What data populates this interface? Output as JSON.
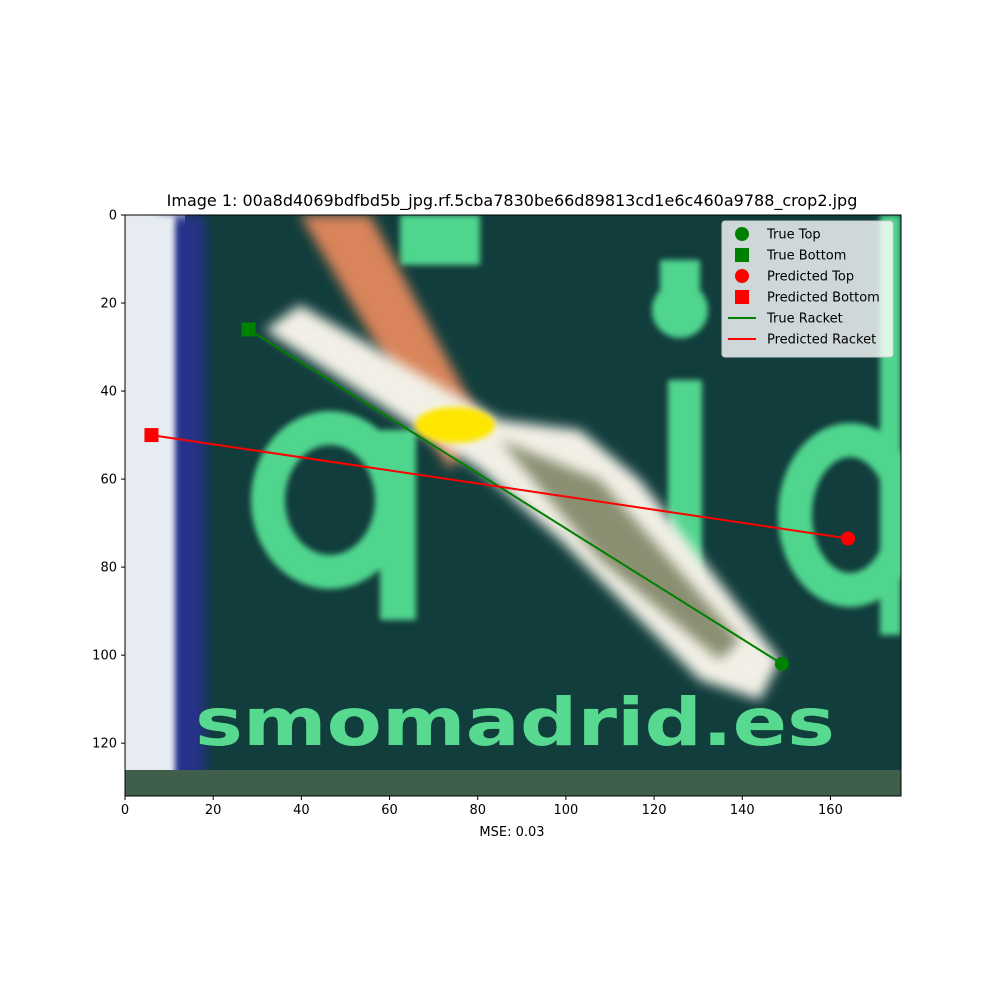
{
  "chart_data": {
    "type": "scatter",
    "title": "Image 1: 00a8d4069bdfbd5b_jpg.rf.5cba7830be66d89813cd1e6c460a9788_crop2.jpg",
    "xlabel": "MSE: 0.03",
    "ylabel": "",
    "xlim": [
      0,
      176
    ],
    "ylim": [
      132,
      0
    ],
    "x_ticks": [
      0,
      20,
      40,
      60,
      80,
      100,
      120,
      140,
      160
    ],
    "y_ticks": [
      0,
      20,
      40,
      60,
      80,
      100,
      120
    ],
    "background_image": "photo of a green advertising banner with light green lettering 'smomadrid.es' and a blurred racket",
    "banner_text": "smomadrid.es",
    "legend_position": "upper right",
    "series": [
      {
        "name": "True Top",
        "marker": "circle",
        "color": "#008000",
        "x": [
          149
        ],
        "y": [
          102
        ]
      },
      {
        "name": "True Bottom",
        "marker": "square",
        "color": "#008000",
        "x": [
          28
        ],
        "y": [
          26
        ]
      },
      {
        "name": "Predicted Top",
        "marker": "circle",
        "color": "#ff0000",
        "x": [
          164
        ],
        "y": [
          73.5
        ]
      },
      {
        "name": "Predicted Bottom",
        "marker": "square",
        "color": "#ff0000",
        "x": [
          6
        ],
        "y": [
          50
        ]
      },
      {
        "name": "True Racket",
        "marker": "line",
        "color": "#008000",
        "x": [
          28,
          149
        ],
        "y": [
          26,
          102
        ]
      },
      {
        "name": "Predicted Racket",
        "marker": "line",
        "color": "#ff0000",
        "x": [
          6,
          164
        ],
        "y": [
          50,
          73.5
        ]
      }
    ]
  }
}
